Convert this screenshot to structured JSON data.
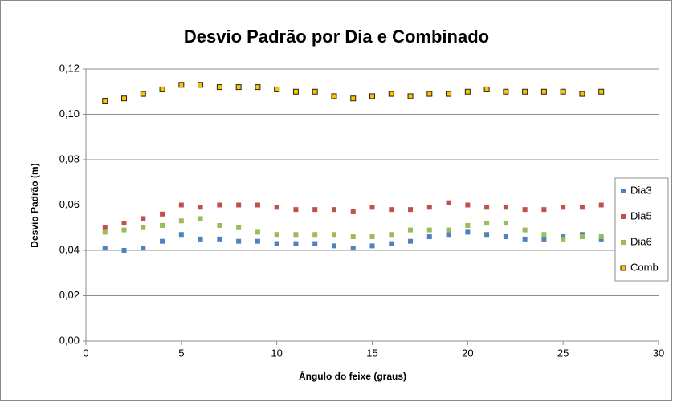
{
  "chart_data": {
    "type": "scatter",
    "title": "Desvio Padrão por Dia e Combinado",
    "x_label": "Ângulo do feixe (graus)",
    "y_label": "Desvio Padrão (m)",
    "x": [
      1,
      2,
      3,
      4,
      5,
      6,
      7,
      8,
      9,
      10,
      11,
      12,
      13,
      14,
      15,
      16,
      17,
      18,
      19,
      20,
      21,
      22,
      23,
      24,
      25,
      26,
      27
    ],
    "series": [
      {
        "name": "Dia3",
        "color": "#4f81bd",
        "values": [
          0.041,
          0.04,
          0.041,
          0.044,
          0.047,
          0.045,
          0.045,
          0.044,
          0.044,
          0.043,
          0.043,
          0.043,
          0.042,
          0.041,
          0.042,
          0.043,
          0.044,
          0.046,
          0.047,
          0.048,
          0.047,
          0.046,
          0.045,
          0.045,
          0.046,
          0.047,
          0.045
        ]
      },
      {
        "name": "Dia5",
        "color": "#c0504d",
        "values": [
          0.05,
          0.052,
          0.054,
          0.056,
          0.06,
          0.059,
          0.06,
          0.06,
          0.06,
          0.059,
          0.058,
          0.058,
          0.058,
          0.057,
          0.059,
          0.058,
          0.058,
          0.059,
          0.061,
          0.06,
          0.059,
          0.059,
          0.058,
          0.058,
          0.059,
          0.059,
          0.06
        ]
      },
      {
        "name": "Dia6",
        "color": "#9bbb59",
        "values": [
          0.048,
          0.049,
          0.05,
          0.051,
          0.053,
          0.054,
          0.051,
          0.05,
          0.048,
          0.047,
          0.047,
          0.047,
          0.047,
          0.046,
          0.046,
          0.047,
          0.049,
          0.049,
          0.049,
          0.051,
          0.052,
          0.052,
          0.049,
          0.047,
          0.045,
          0.046,
          0.046
        ]
      },
      {
        "name": "Comb",
        "color": "#ffc000",
        "values": [
          0.106,
          0.107,
          0.109,
          0.111,
          0.113,
          0.113,
          0.112,
          0.112,
          0.112,
          0.111,
          0.11,
          0.11,
          0.108,
          0.107,
          0.108,
          0.109,
          0.108,
          0.109,
          0.109,
          0.11,
          0.111,
          0.11,
          0.11,
          0.11,
          0.11,
          0.109,
          0.11
        ]
      }
    ],
    "xlim": [
      0,
      30
    ],
    "xticks": [
      0,
      5,
      10,
      15,
      20,
      25,
      30
    ],
    "ylim": [
      0,
      0.12
    ],
    "yticks": [
      {
        "value": 0,
        "label": "0,00"
      },
      {
        "value": 0.02,
        "label": "0,02"
      },
      {
        "value": 0.04,
        "label": "0,04"
      },
      {
        "value": 0.06,
        "label": "0,06"
      },
      {
        "value": 0.08,
        "label": "0,08"
      },
      {
        "value": 0.1,
        "label": "0,10"
      },
      {
        "value": 0.12,
        "label": "0,12"
      }
    ],
    "grid": true,
    "legend": "right"
  }
}
